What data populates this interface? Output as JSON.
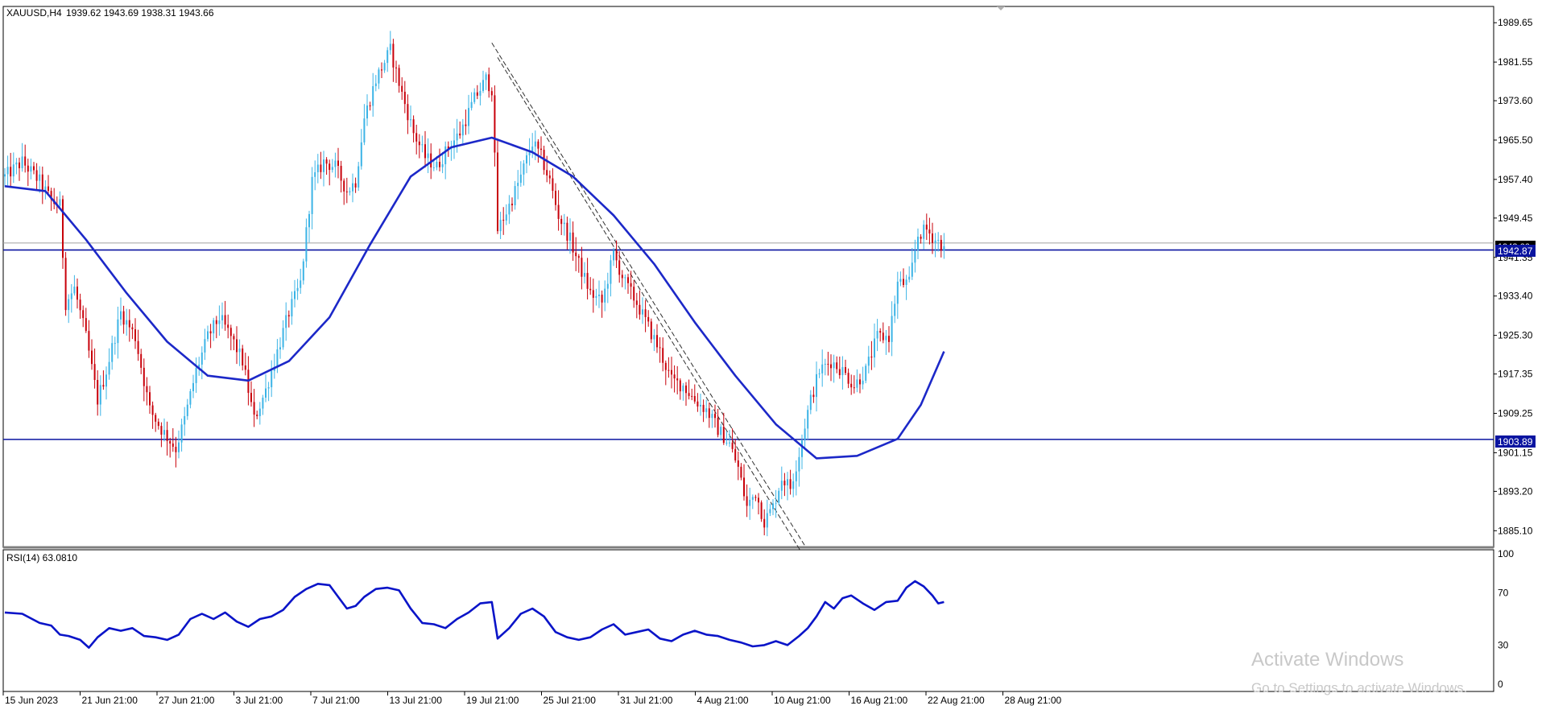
{
  "header": {
    "symbol": "XAUUSD,H4",
    "ohlc": "1939.62 1943.69 1938.31 1943.66"
  },
  "rsi_label": "RSI(14) 63.0810",
  "price_tags": {
    "upper_line": "1942.87",
    "lower_line": "1903.89",
    "current_overlay": "1943.66"
  },
  "watermark": {
    "line1": "Activate Windows",
    "line2": "Go to Settings to activate Windows."
  },
  "colors": {
    "background": "#ffffff",
    "bull_candle": "#3cb4e6",
    "bear_candle": "#c8000a",
    "moving_average": "#1c28c8",
    "horizontal_lines": "#0a14a0",
    "rsi_line": "#0a14c8",
    "grid": "#c8c8c8",
    "price_tag_bg": "#0a14a0"
  },
  "chart_data": [
    {
      "type": "candlestick",
      "symbol": "XAUUSD",
      "timeframe": "H4",
      "ylim": [
        1882,
        1993
      ],
      "y_ticks": [
        "1989.65",
        "1981.55",
        "1973.60",
        "1965.50",
        "1957.40",
        "1949.45",
        "1941.35",
        "1933.40",
        "1925.30",
        "1917.35",
        "1909.25",
        "1901.15",
        "1893.20",
        "1885.10"
      ],
      "x_ticks": [
        "15 Jun 2023",
        "21 Jun 21:00",
        "27 Jun 21:00",
        "3 Jul 21:00",
        "7 Jul 21:00",
        "13 Jul 21:00",
        "19 Jul 21:00",
        "25 Jul 21:00",
        "31 Jul 21:00",
        "4 Aug 21:00",
        "10 Aug 21:00",
        "16 Aug 21:00",
        "22 Aug 21:00",
        "28 Aug 21:00"
      ],
      "horizontal_lines": [
        1942.87,
        1903.89
      ],
      "price_path": [
        [
          0,
          1958
        ],
        [
          6,
          1961
        ],
        [
          12,
          1957
        ],
        [
          16,
          1953
        ],
        [
          19,
          1952
        ],
        [
          21,
          1932
        ],
        [
          24,
          1935
        ],
        [
          28,
          1925
        ],
        [
          32,
          1912
        ],
        [
          35,
          1918
        ],
        [
          40,
          1930
        ],
        [
          45,
          1925
        ],
        [
          50,
          1910
        ],
        [
          54,
          1906
        ],
        [
          59,
          1902
        ],
        [
          62,
          1908
        ],
        [
          66,
          1918
        ],
        [
          70,
          1925
        ],
        [
          74,
          1929
        ],
        [
          78,
          1925
        ],
        [
          82,
          1920
        ],
        [
          86,
          1908
        ],
        [
          90,
          1914
        ],
        [
          94,
          1922
        ],
        [
          98,
          1930
        ],
        [
          102,
          1936
        ],
        [
          106,
          1957
        ],
        [
          110,
          1961
        ],
        [
          114,
          1960
        ],
        [
          118,
          1955
        ],
        [
          121,
          1957
        ],
        [
          124,
          1970
        ],
        [
          128,
          1978
        ],
        [
          133,
          1984
        ],
        [
          137,
          1975
        ],
        [
          141,
          1967
        ],
        [
          145,
          1962
        ],
        [
          149,
          1960
        ],
        [
          153,
          1964
        ],
        [
          157,
          1967
        ],
        [
          162,
          1974
        ],
        [
          166,
          1978
        ],
        [
          168,
          1976
        ],
        [
          170,
          1947
        ],
        [
          174,
          1952
        ],
        [
          178,
          1958
        ],
        [
          182,
          1965
        ],
        [
          185,
          1962
        ],
        [
          188,
          1957
        ],
        [
          191,
          1950
        ],
        [
          195,
          1945
        ],
        [
          198,
          1940
        ],
        [
          202,
          1934
        ],
        [
          206,
          1932
        ],
        [
          210,
          1942
        ],
        [
          214,
          1936
        ],
        [
          218,
          1932
        ],
        [
          222,
          1927
        ],
        [
          226,
          1922
        ],
        [
          230,
          1916
        ],
        [
          234,
          1915
        ],
        [
          238,
          1912
        ],
        [
          242,
          1910
        ],
        [
          246,
          1906
        ],
        [
          250,
          1903
        ],
        [
          253,
          1898
        ],
        [
          256,
          1890
        ],
        [
          259,
          1893
        ],
        [
          262,
          1887
        ],
        [
          265,
          1890
        ],
        [
          268,
          1896
        ],
        [
          271,
          1894
        ],
        [
          274,
          1901
        ],
        [
          276,
          1907
        ],
        [
          278,
          1912
        ],
        [
          281,
          1918
        ],
        [
          285,
          1920
        ],
        [
          289,
          1918
        ],
        [
          293,
          1915
        ],
        [
          297,
          1918
        ],
        [
          301,
          1925
        ],
        [
          305,
          1925
        ],
        [
          308,
          1936
        ],
        [
          312,
          1936
        ],
        [
          315,
          1946
        ],
        [
          318,
          1947
        ],
        [
          321,
          1945
        ],
        [
          324,
          1943.66
        ]
      ],
      "moving_average": [
        [
          0,
          1956
        ],
        [
          14,
          1955
        ],
        [
          28,
          1945
        ],
        [
          42,
          1934
        ],
        [
          56,
          1924
        ],
        [
          70,
          1917
        ],
        [
          84,
          1916
        ],
        [
          98,
          1920
        ],
        [
          112,
          1929
        ],
        [
          126,
          1944
        ],
        [
          140,
          1958
        ],
        [
          154,
          1964
        ],
        [
          168,
          1966
        ],
        [
          182,
          1963
        ],
        [
          196,
          1958
        ],
        [
          210,
          1950
        ],
        [
          224,
          1940
        ],
        [
          238,
          1928
        ],
        [
          252,
          1917
        ],
        [
          266,
          1907
        ],
        [
          280,
          1900
        ],
        [
          294,
          1900.5
        ],
        [
          308,
          1904
        ],
        [
          316,
          1911
        ],
        [
          324,
          1922
        ]
      ]
    },
    {
      "type": "line",
      "title": "RSI(14) 63.0810",
      "ylim": [
        0,
        100
      ],
      "y_ticks": [
        100,
        70,
        30,
        0
      ],
      "levels": [
        70,
        30
      ],
      "series": [
        {
          "name": "RSI(14)",
          "points": [
            [
              0,
              55
            ],
            [
              6,
              54
            ],
            [
              12,
              47
            ],
            [
              16,
              45
            ],
            [
              19,
              38
            ],
            [
              22,
              37
            ],
            [
              26,
              34
            ],
            [
              29,
              28
            ],
            [
              32,
              36
            ],
            [
              36,
              43
            ],
            [
              40,
              41
            ],
            [
              44,
              43
            ],
            [
              48,
              37
            ],
            [
              52,
              36
            ],
            [
              56,
              34
            ],
            [
              60,
              38
            ],
            [
              64,
              50
            ],
            [
              68,
              54
            ],
            [
              72,
              50
            ],
            [
              76,
              55
            ],
            [
              80,
              48
            ],
            [
              84,
              44
            ],
            [
              88,
              50
            ],
            [
              92,
              52
            ],
            [
              96,
              57
            ],
            [
              100,
              67
            ],
            [
              104,
              73
            ],
            [
              108,
              77
            ],
            [
              112,
              76
            ],
            [
              115,
              67
            ],
            [
              118,
              58
            ],
            [
              121,
              60
            ],
            [
              124,
              67
            ],
            [
              128,
              73
            ],
            [
              132,
              74
            ],
            [
              136,
              72
            ],
            [
              140,
              58
            ],
            [
              144,
              47
            ],
            [
              148,
              46
            ],
            [
              152,
              43
            ],
            [
              156,
              50
            ],
            [
              160,
              55
            ],
            [
              164,
              62
            ],
            [
              168,
              63
            ],
            [
              170,
              35
            ],
            [
              174,
              43
            ],
            [
              178,
              54
            ],
            [
              182,
              58
            ],
            [
              186,
              52
            ],
            [
              190,
              40
            ],
            [
              194,
              36
            ],
            [
              198,
              34
            ],
            [
              202,
              36
            ],
            [
              206,
              42
            ],
            [
              210,
              46
            ],
            [
              214,
              38
            ],
            [
              218,
              40
            ],
            [
              222,
              42
            ],
            [
              226,
              35
            ],
            [
              230,
              33
            ],
            [
              234,
              38
            ],
            [
              238,
              41
            ],
            [
              242,
              38
            ],
            [
              246,
              37
            ],
            [
              250,
              34
            ],
            [
              254,
              32
            ],
            [
              258,
              29
            ],
            [
              262,
              30
            ],
            [
              266,
              33
            ],
            [
              270,
              30
            ],
            [
              274,
              37
            ],
            [
              277,
              43
            ],
            [
              280,
              52
            ],
            [
              283,
              63
            ],
            [
              286,
              58
            ],
            [
              289,
              66
            ],
            [
              292,
              68
            ],
            [
              296,
              62
            ],
            [
              300,
              57
            ],
            [
              304,
              63
            ],
            [
              308,
              64
            ],
            [
              311,
              74
            ],
            [
              314,
              79
            ],
            [
              317,
              75
            ],
            [
              320,
              68
            ],
            [
              322,
              62
            ],
            [
              324,
              63
            ]
          ]
        }
      ]
    }
  ]
}
